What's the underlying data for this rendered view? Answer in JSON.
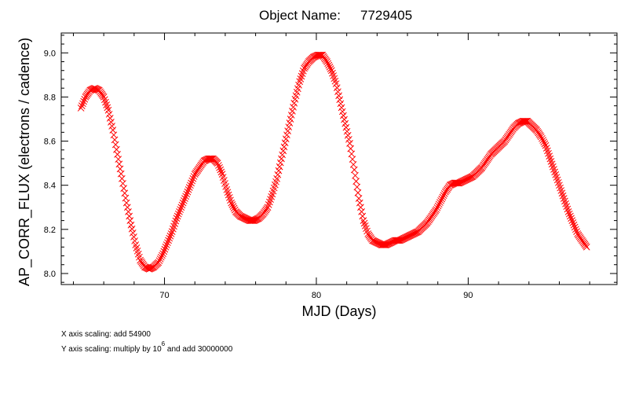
{
  "chart_data": {
    "type": "scatter",
    "title_prefix": "Object Name:",
    "title_value": "7729405",
    "xlabel": "MJD (Days)",
    "ylabel": "AP_CORR_FLUX (electrons / cadence)",
    "xlim": [
      63.2,
      99.8
    ],
    "ylim": [
      7.95,
      9.09
    ],
    "xticks": [
      70,
      80,
      90
    ],
    "yticks": [
      8.0,
      8.2,
      8.4,
      8.6,
      8.8,
      9.0
    ],
    "yticks_labels": [
      "8.0",
      "8.2",
      "8.4",
      "8.6",
      "8.8",
      "9.0"
    ],
    "xticks_labels": [
      "70",
      "80",
      "90"
    ],
    "marker": "x",
    "marker_color": "#ff0000",
    "grid": false,
    "series": [
      {
        "x": [
          64.5,
          64.8,
          65.1,
          65.4,
          65.7,
          66.0,
          66.3,
          66.6,
          66.9,
          67.2,
          67.5,
          67.8,
          68.1,
          68.4,
          68.7,
          69.0,
          69.3,
          69.6,
          69.9,
          70.2,
          70.5,
          70.8,
          71.1,
          71.4,
          71.7,
          72.0,
          72.3,
          72.6,
          72.9,
          73.2,
          73.5,
          73.8,
          74.1,
          74.4,
          74.7,
          75.0,
          75.3,
          75.6,
          75.9,
          76.2,
          76.5,
          76.8,
          77.1,
          77.4,
          77.7,
          78.0,
          78.3,
          78.6,
          78.9,
          79.2,
          79.5,
          79.8,
          80.1,
          80.4,
          80.7,
          81.0,
          81.3,
          81.6,
          81.9,
          82.2,
          82.5,
          82.8,
          83.1,
          83.4,
          83.7,
          84.0,
          84.3,
          84.6,
          84.9,
          85.2,
          85.5,
          85.8,
          86.1,
          86.4,
          86.7,
          87.0,
          87.3,
          87.6,
          87.9,
          88.2,
          88.5,
          88.8,
          89.1,
          89.4,
          89.7,
          90.0,
          90.3,
          90.6,
          90.9,
          91.2,
          91.5,
          91.8,
          92.1,
          92.4,
          92.7,
          93.0,
          93.3,
          93.6,
          93.9,
          94.2,
          94.5,
          94.8,
          95.1,
          95.4,
          95.7,
          96.0,
          96.3,
          96.6,
          96.9,
          97.2,
          97.5,
          97.8
        ],
        "y": [
          8.75,
          8.8,
          8.83,
          8.84,
          8.83,
          8.8,
          8.74,
          8.65,
          8.54,
          8.43,
          8.32,
          8.22,
          8.13,
          8.06,
          8.03,
          8.02,
          8.03,
          8.05,
          8.09,
          8.14,
          8.19,
          8.25,
          8.3,
          8.35,
          8.4,
          8.45,
          8.48,
          8.51,
          8.52,
          8.52,
          8.5,
          8.45,
          8.38,
          8.32,
          8.28,
          8.26,
          8.25,
          8.24,
          8.24,
          8.25,
          8.27,
          8.3,
          8.36,
          8.43,
          8.52,
          8.61,
          8.7,
          8.79,
          8.87,
          8.93,
          8.96,
          8.98,
          8.99,
          8.99,
          8.96,
          8.92,
          8.86,
          8.77,
          8.68,
          8.59,
          8.47,
          8.34,
          8.24,
          8.18,
          8.15,
          8.14,
          8.13,
          8.13,
          8.14,
          8.15,
          8.15,
          8.16,
          8.17,
          8.18,
          8.19,
          8.21,
          8.23,
          8.26,
          8.29,
          8.33,
          8.37,
          8.4,
          8.41,
          8.41,
          8.42,
          8.43,
          8.44,
          8.46,
          8.48,
          8.51,
          8.54,
          8.56,
          8.58,
          8.6,
          8.63,
          8.66,
          8.68,
          8.69,
          8.69,
          8.67,
          8.65,
          8.62,
          8.58,
          8.52,
          8.46,
          8.4,
          8.34,
          8.28,
          8.23,
          8.18,
          8.15,
          8.12
        ]
      }
    ]
  },
  "notes": {
    "x_scaling": "X axis scaling: add 54900",
    "y_scaling_prefix": "Y axis scaling: multiply by 10",
    "y_scaling_exponent": "6",
    "y_scaling_suffix": " and add 30000000"
  }
}
